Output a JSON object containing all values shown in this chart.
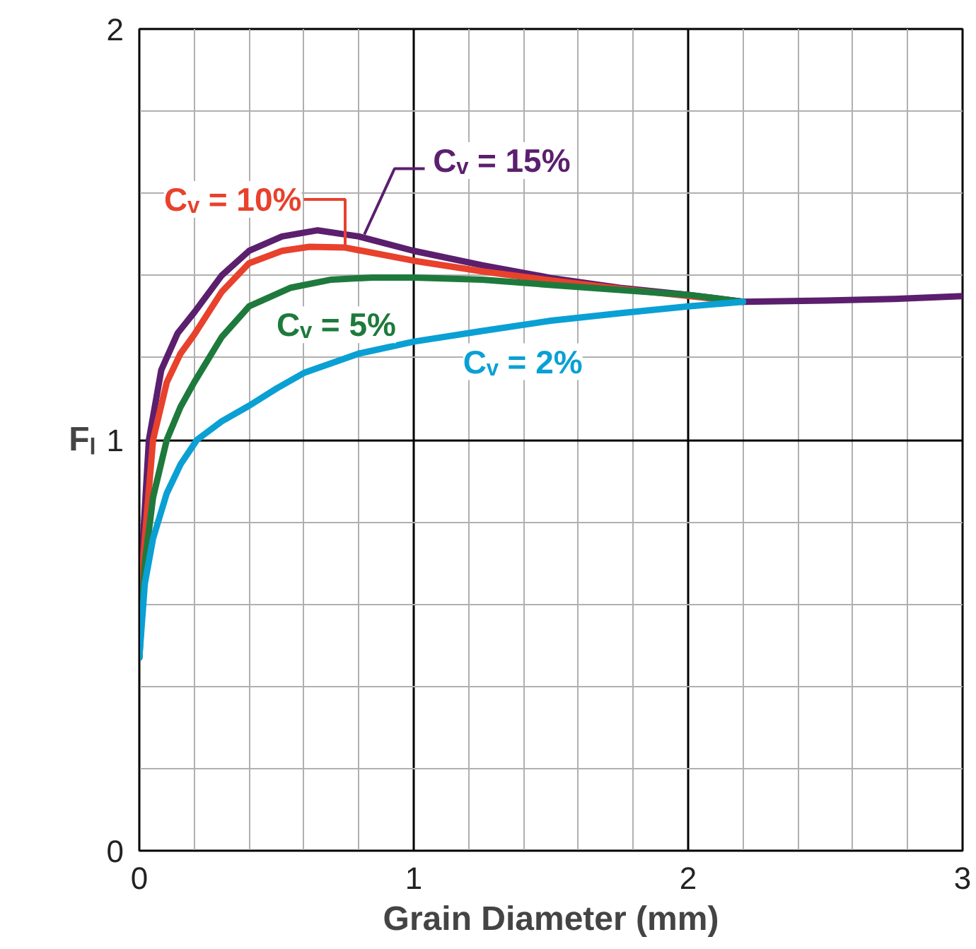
{
  "chart_data": {
    "type": "line",
    "xlabel": "Grain Diameter (mm)",
    "ylabel": "Fₗ",
    "xlim": [
      0,
      3
    ],
    "ylim": [
      0,
      2
    ],
    "xticks": [
      0,
      1,
      2,
      3
    ],
    "yticks": [
      0,
      1,
      2
    ],
    "grid": true,
    "marker": "none",
    "line_style": "solid",
    "series": [
      {
        "name": "Cᵥ = 15%",
        "color": "#5b1f6e",
        "x": [
          0,
          0.01,
          0.035,
          0.08,
          0.14,
          0.2,
          0.3,
          0.4,
          0.52,
          0.65,
          0.8,
          1.0,
          1.25,
          1.5,
          1.75,
          2.0,
          2.2,
          2.5,
          2.75,
          3.0
        ],
        "values": [
          0.47,
          0.72,
          1.0,
          1.17,
          1.26,
          1.31,
          1.4,
          1.46,
          1.495,
          1.51,
          1.495,
          1.46,
          1.425,
          1.394,
          1.37,
          1.353,
          1.336,
          1.339,
          1.343,
          1.35
        ]
      },
      {
        "name": "Cᵥ = 10%",
        "color": "#e8412c",
        "x": [
          0,
          0.015,
          0.05,
          0.1,
          0.15,
          0.2,
          0.3,
          0.4,
          0.52,
          0.62,
          0.75,
          1.0,
          1.25,
          1.5,
          1.75,
          2.0,
          2.2
        ],
        "values": [
          0.47,
          0.72,
          1.0,
          1.14,
          1.21,
          1.256,
          1.36,
          1.43,
          1.46,
          1.47,
          1.468,
          1.436,
          1.41,
          1.388,
          1.368,
          1.35,
          1.336
        ]
      },
      {
        "name": "Cᵥ = 5%",
        "color": "#1e7a3c",
        "x": [
          0,
          0.02,
          0.05,
          0.1,
          0.15,
          0.2,
          0.3,
          0.4,
          0.55,
          0.7,
          0.85,
          1.0,
          1.25,
          1.5,
          1.75,
          2.0,
          2.2
        ],
        "values": [
          0.47,
          0.7,
          0.86,
          1.0,
          1.08,
          1.14,
          1.25,
          1.325,
          1.37,
          1.39,
          1.395,
          1.395,
          1.39,
          1.377,
          1.365,
          1.353,
          1.336
        ]
      },
      {
        "name": "Cᵥ = 2%",
        "color": "#0aa0d4",
        "x": [
          0,
          0.02,
          0.05,
          0.1,
          0.15,
          0.21,
          0.3,
          0.4,
          0.5,
          0.6,
          0.8,
          1.0,
          1.25,
          1.5,
          1.75,
          2.0,
          2.2
        ],
        "values": [
          0.47,
          0.65,
          0.76,
          0.87,
          0.94,
          1.0,
          1.045,
          1.083,
          1.125,
          1.163,
          1.21,
          1.239,
          1.265,
          1.29,
          1.308,
          1.325,
          1.336
        ]
      }
    ]
  }
}
